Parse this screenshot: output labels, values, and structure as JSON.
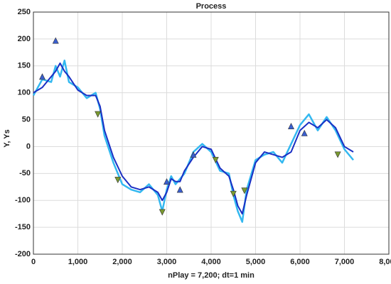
{
  "chart_data": {
    "type": "line",
    "title": "Process",
    "x_label": "nPlay = 7,200;  dt=1 min",
    "y_label": "Y, Ys",
    "xlim": [
      0,
      8000
    ],
    "ylim": [
      -200,
      250
    ],
    "xticks": [
      0,
      {
        "value": 1000,
        "label": "1,000"
      },
      {
        "value": 2000,
        "label": "2,000"
      },
      {
        "value": 3000,
        "label": "3,000"
      },
      {
        "value": 4000,
        "label": "4,000"
      },
      {
        "value": 5000,
        "label": "5,000"
      },
      {
        "value": 6000,
        "label": "6,000"
      },
      {
        "value": 7000,
        "label": "7,000"
      },
      {
        "value": 8000,
        "label": "8,000"
      }
    ],
    "yticks": [
      -200,
      -150,
      -100,
      -50,
      0,
      50,
      100,
      150,
      200,
      250
    ],
    "grid": true,
    "x": [
      0,
      200,
      400,
      500,
      600,
      700,
      800,
      1000,
      1200,
      1400,
      1500,
      1600,
      1800,
      2000,
      2200,
      2400,
      2600,
      2800,
      2900,
      3000,
      3100,
      3200,
      3300,
      3400,
      3600,
      3800,
      4000,
      4200,
      4400,
      4500,
      4600,
      4700,
      4800,
      5000,
      5200,
      5400,
      5600,
      5800,
      6000,
      6200,
      6400,
      6600,
      6800,
      7000,
      7200
    ],
    "series": [
      {
        "color": "#33b8f0",
        "values": [
          95,
          125,
          120,
          150,
          130,
          160,
          120,
          110,
          90,
          100,
          70,
          20,
          -30,
          -70,
          -80,
          -85,
          -70,
          -90,
          -120,
          -80,
          -55,
          -70,
          -60,
          -50,
          -10,
          5,
          -10,
          -45,
          -50,
          -90,
          -120,
          -140,
          -80,
          -25,
          -15,
          -10,
          -30,
          5,
          40,
          60,
          30,
          55,
          30,
          -5,
          -25
        ]
      },
      {
        "color": "#1a2fc4",
        "values": [
          100,
          110,
          130,
          140,
          155,
          140,
          130,
          105,
          95,
          95,
          75,
          30,
          -20,
          -55,
          -75,
          -80,
          -75,
          -85,
          -100,
          -85,
          -60,
          -65,
          -65,
          -45,
          -20,
          0,
          -5,
          -40,
          -55,
          -80,
          -110,
          -125,
          -90,
          -30,
          -10,
          -15,
          -20,
          -10,
          30,
          45,
          35,
          50,
          35,
          0,
          -10
        ]
      }
    ],
    "markers": [
      {
        "shape": "up",
        "color": "#3a5fd0",
        "x": [
          200,
          500,
          3000,
          3300,
          3600,
          5800,
          6100
        ],
        "values": [
          130,
          197,
          -65,
          -80,
          -15,
          38,
          25
        ]
      },
      {
        "shape": "down",
        "color": "#7a9a30",
        "x": [
          1450,
          1900,
          2900,
          4100,
          4500,
          4750,
          6850
        ],
        "values": [
          60,
          -62,
          -122,
          -25,
          -88,
          -82,
          -15
        ]
      }
    ]
  }
}
